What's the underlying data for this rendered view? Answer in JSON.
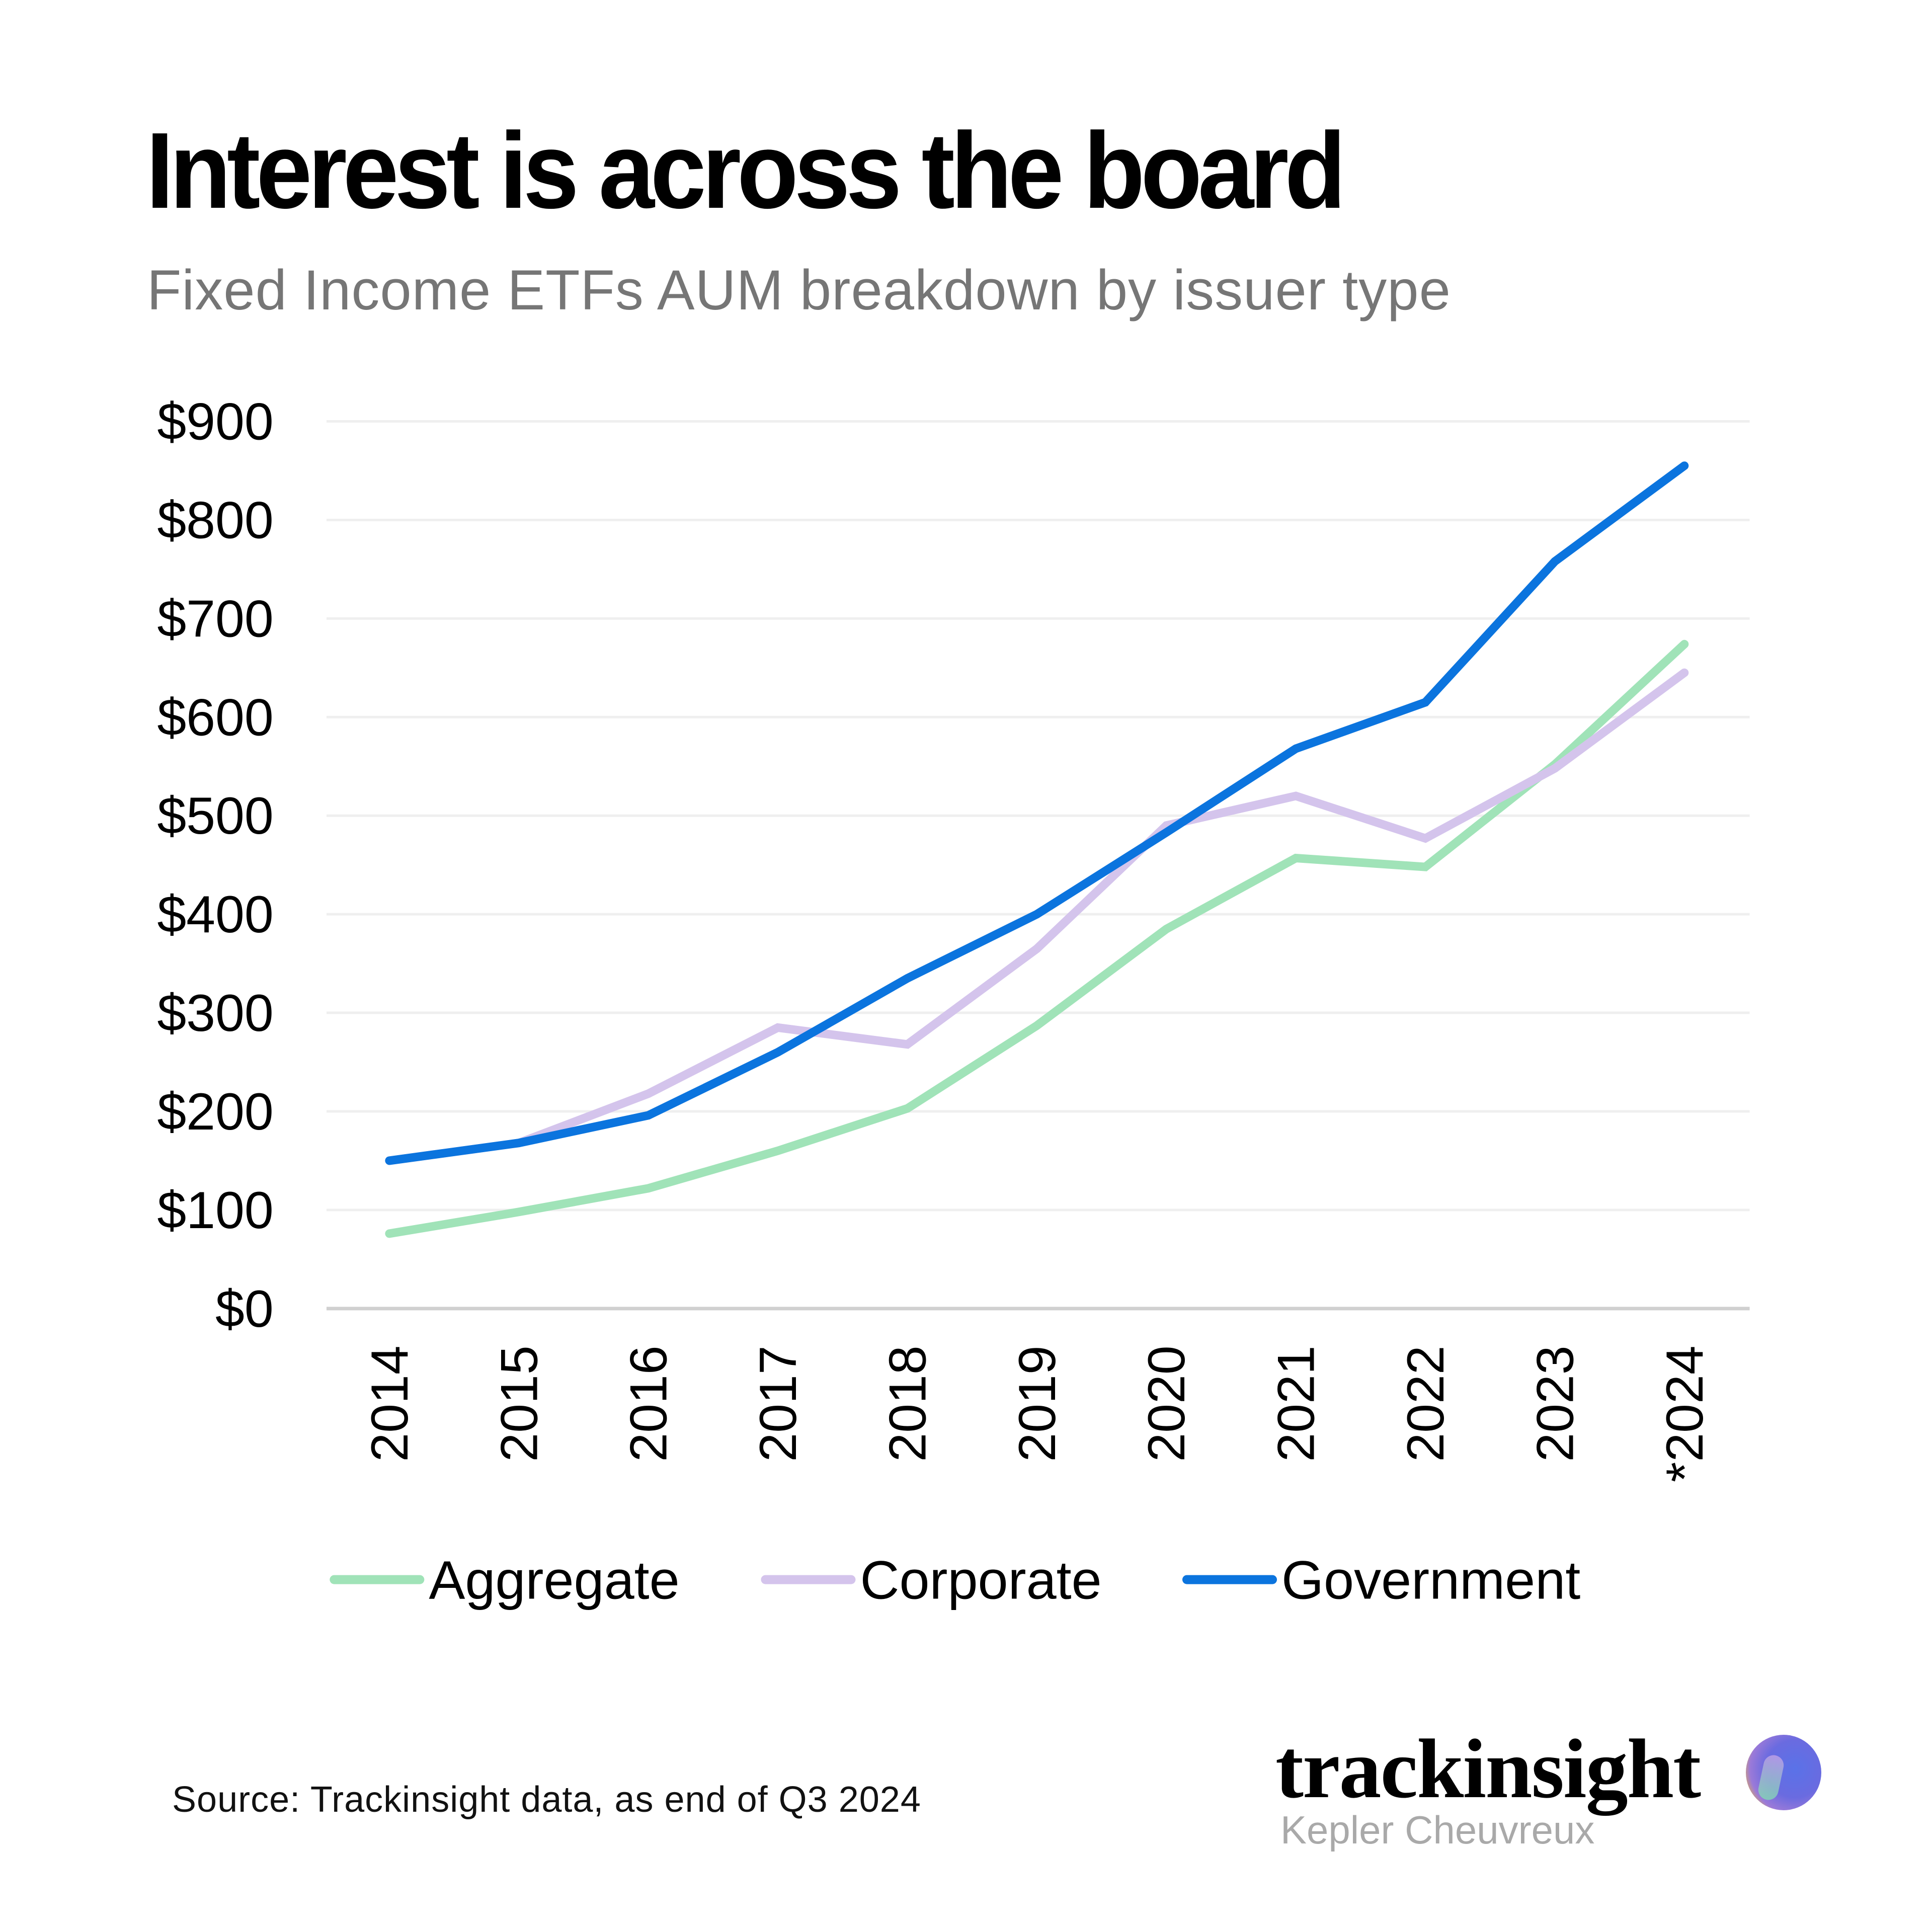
{
  "header": {
    "title": "Interest is across the board",
    "subtitle": "Fixed Income ETFs AUM breakdown by issuer type"
  },
  "footer": {
    "source": "Source: Trackinsight data, as end of Q3 2024",
    "brand": "trackinsight",
    "brand_sub": "Kepler Cheuvreux"
  },
  "colors": {
    "aggregate": "#a0e3b8",
    "corporate": "#d4c4ec",
    "government": "#0b74de",
    "grid": "#efefef",
    "axis": "#d0d0d0"
  },
  "chart_data": {
    "type": "line",
    "title": "Interest is across the board",
    "subtitle": "Fixed Income ETFs AUM breakdown by issuer type",
    "xlabel": "",
    "ylabel": "",
    "categories": [
      "2014",
      "2015",
      "2016",
      "2017",
      "2018",
      "2019",
      "2020",
      "2021",
      "2022",
      "2023",
      "*2024"
    ],
    "y_ticks": [
      "$0",
      "$100",
      "$200",
      "$300",
      "$400",
      "$500",
      "$600",
      "$700",
      "$800",
      "$900"
    ],
    "ylim": [
      0,
      900
    ],
    "grid": true,
    "legend_position": "bottom",
    "series": [
      {
        "name": "Aggregate",
        "color": "#a0e3b8",
        "values": [
          76,
          98,
          122,
          160,
          203,
          287,
          385,
          457,
          448,
          552,
          674
        ]
      },
      {
        "name": "Corporate",
        "color": "#d4c4ec",
        "values": [
          150,
          168,
          218,
          285,
          268,
          365,
          490,
          520,
          477,
          548,
          645
        ]
      },
      {
        "name": "Government",
        "color": "#0b74de",
        "values": [
          150,
          168,
          196,
          260,
          335,
          400,
          483,
          568,
          615,
          758,
          855
        ]
      }
    ],
    "annotations": [
      "Source: Trackinsight data, as end of Q3 2024"
    ]
  }
}
